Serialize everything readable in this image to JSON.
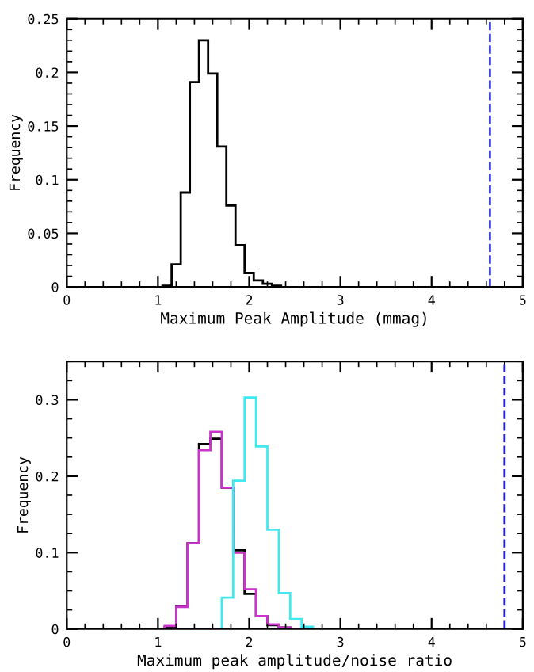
{
  "chart_data": [
    {
      "type": "histogram",
      "xlabel": "Maximum Peak Amplitude (mmag)",
      "ylabel": "Frequency",
      "xlim": [
        0,
        5
      ],
      "ylim": [
        0,
        0.25
      ],
      "xticks": [
        0,
        1,
        2,
        3,
        4,
        5
      ],
      "yticks": [
        0,
        0.05,
        0.1,
        0.15,
        0.2,
        0.25
      ],
      "grid": false,
      "legend": false,
      "bins": [
        1.05,
        1.15,
        1.25,
        1.35,
        1.45,
        1.55,
        1.65,
        1.75,
        1.85,
        1.95,
        2.05,
        2.15,
        2.25,
        2.35
      ],
      "series": [
        {
          "color": "#000000",
          "values": [
            0.001,
            0.021,
            0.088,
            0.191,
            0.23,
            0.199,
            0.131,
            0.076,
            0.039,
            0.013,
            0.006,
            0.003,
            0.001
          ]
        }
      ],
      "ref_lines": [
        {
          "axis": "x",
          "value": 4.64,
          "color": "#4040ff",
          "line_style": "dashed"
        }
      ]
    },
    {
      "type": "histogram",
      "xlabel": "Maximum peak amplitude/noise ratio",
      "ylabel": "Frequency",
      "xlim": [
        0,
        5
      ],
      "ylim": [
        0,
        0.35
      ],
      "xticks": [
        0,
        1,
        2,
        3,
        4,
        5
      ],
      "yticks": [
        0,
        0.1,
        0.2,
        0.3
      ],
      "grid": false,
      "legend": false,
      "bins": [
        1.075,
        1.2,
        1.325,
        1.45,
        1.575,
        1.7,
        1.825,
        1.95,
        2.075,
        2.2,
        2.325,
        2.45,
        2.575,
        2.7
      ],
      "series": [
        {
          "color": "#000000",
          "values": [
            0.003,
            0.03,
            0.112,
            0.242,
            0.249,
            0.185,
            0.103,
            0.046,
            0.017,
            0.005,
            0.002,
            0,
            0
          ]
        },
        {
          "color": "#cc33cc",
          "values": [
            0.004,
            0.029,
            0.112,
            0.234,
            0.258,
            0.185,
            0.1,
            0.052,
            0.017,
            0.006,
            0.002,
            0,
            0
          ]
        },
        {
          "color": "#40e8f0",
          "values": [
            0,
            0,
            0,
            0,
            0,
            0.041,
            0.194,
            0.303,
            0.239,
            0.13,
            0.047,
            0.013,
            0.003
          ]
        }
      ],
      "ref_lines": [
        {
          "axis": "x",
          "value": 4.8,
          "color": "#2020cc",
          "line_style": "dashed"
        }
      ]
    }
  ]
}
